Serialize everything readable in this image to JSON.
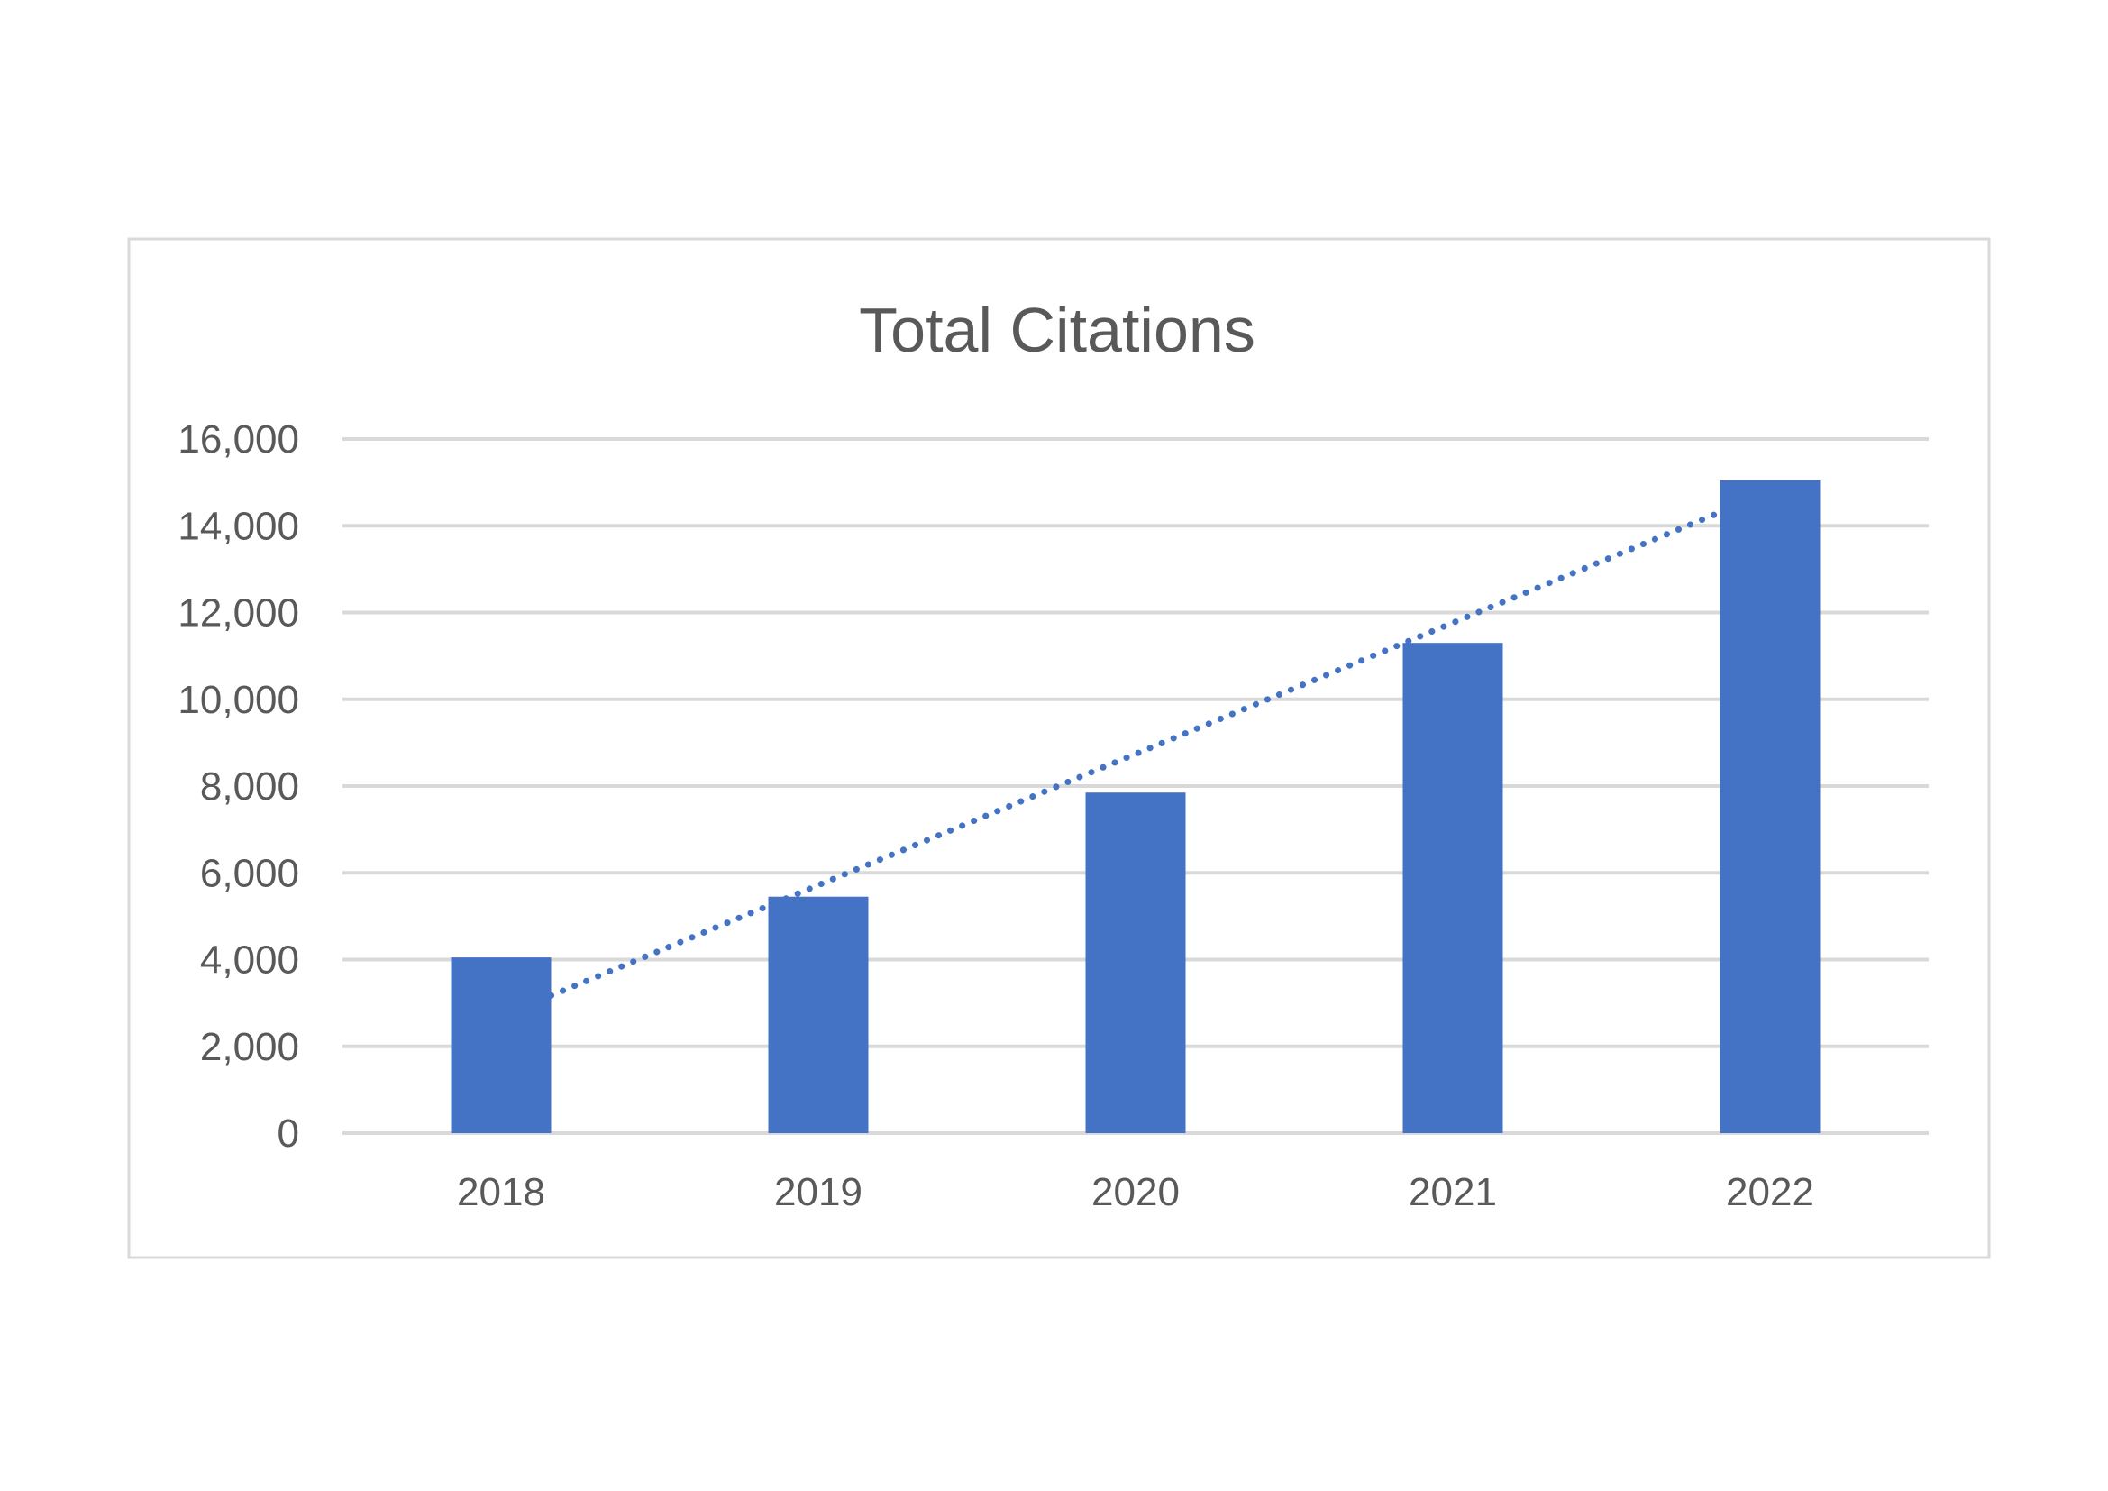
{
  "chart_data": {
    "type": "bar",
    "title": "Total Citations",
    "xlabel": "",
    "ylabel": "",
    "categories": [
      "2018",
      "2019",
      "2020",
      "2021",
      "2022"
    ],
    "values": [
      4050,
      5450,
      7850,
      11300,
      15050
    ],
    "ylim": [
      0,
      16000
    ],
    "yticks": [
      0,
      2000,
      4000,
      6000,
      8000,
      10000,
      12000,
      14000,
      16000
    ],
    "ytick_labels": [
      "0",
      "2,000",
      "4,000",
      "6,000",
      "8,000",
      "10,000",
      "12,000",
      "14,000",
      "16,000"
    ],
    "grid": true,
    "legend": "none",
    "trendline": {
      "type": "linear",
      "style": "dotted"
    },
    "colors": {
      "bar": "#4472c4",
      "trendline": "#4472c4",
      "grid": "#d9d9d9",
      "text": "#595959",
      "frame": "#d9d9d9"
    }
  }
}
